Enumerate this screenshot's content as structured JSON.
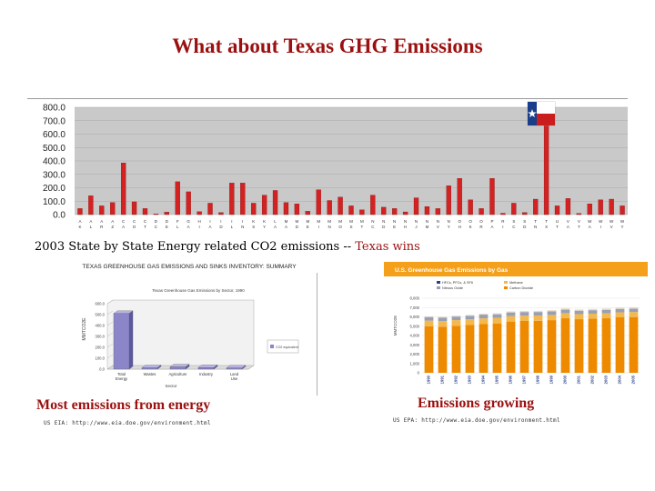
{
  "slide": {
    "title": "What about Texas GHG Emissions",
    "caption_main": "2003 State by State Energy related CO2 emissions",
    "caption_sep": " -- ",
    "caption_highlight": "Texas wins",
    "caption_left": "Most emissions from energy",
    "caption_right": "Emissions growing",
    "source_left": "US EIA: http://www.eia.doe.gov/environment.html",
    "source_right": "US EPA: http://www.eia.doe.gov/environment.html"
  },
  "colors": {
    "title": "#9b1111",
    "bar_red": "#d42121",
    "bar_orange": "#ee8a00",
    "panel_header": "#f5a01a",
    "gray_band": "#9aa0b4",
    "lavender": "#8a86c8"
  },
  "chart_data": [
    {
      "type": "bar",
      "title": "2003 State by State Energy related CO2 emissions",
      "ylim": [
        0,
        800
      ],
      "yticks": [
        "800.0",
        "700.0",
        "600.0",
        "500.0",
        "400.0",
        "300.0",
        "200.0",
        "100.0",
        "0.0"
      ],
      "categories": [
        "AK",
        "AL",
        "AR",
        "AZ",
        "CA",
        "CO",
        "CT",
        "DC",
        "DE",
        "FL",
        "GA",
        "HI",
        "IA",
        "ID",
        "IL",
        "IN",
        "KS",
        "KY",
        "LA",
        "MA",
        "MD",
        "ME",
        "MI",
        "MN",
        "MO",
        "MS",
        "MT",
        "NC",
        "ND",
        "NE",
        "NH",
        "NJ",
        "NM",
        "NV",
        "NY",
        "OH",
        "OK",
        "OR",
        "PA",
        "RI",
        "SC",
        "SD",
        "TN",
        "TX",
        "UT",
        "VA",
        "VT",
        "WA",
        "WI",
        "WV",
        "WY"
      ],
      "values": [
        45,
        140,
        65,
        90,
        385,
        95,
        45,
        5,
        18,
        245,
        170,
        22,
        85,
        15,
        235,
        235,
        85,
        145,
        180,
        90,
        80,
        25,
        185,
        105,
        130,
        65,
        35,
        145,
        55,
        45,
        20,
        125,
        60,
        45,
        215,
        270,
        110,
        45,
        270,
        10,
        85,
        15,
        115,
        670,
        65,
        120,
        8,
        80,
        110,
        115,
        65
      ],
      "highlight": "TX"
    },
    {
      "type": "bar",
      "title": "TEXAS GREENHOUSE GAS EMISSIONS AND SINKS INVENTORY: SUMMARY",
      "subtitle": "Texas Greenhouse Gas Emissions by Sector, 1990",
      "ylabel": "MMTCO2E",
      "xlabel": "Sector",
      "legend": "CO2 equivalent",
      "ylim": [
        0,
        600
      ],
      "yticks": [
        "600.0",
        "500.0",
        "400.0",
        "300.0",
        "200.0",
        "100.0",
        "0.0"
      ],
      "categories": [
        "Total Energy",
        "Wastes",
        "Agriculture",
        "Industry",
        "Land Use"
      ],
      "values": [
        510,
        12,
        20,
        14,
        10
      ]
    },
    {
      "type": "bar",
      "title": "U.S. Greenhouse Gas Emissions by Gas",
      "ylabel": "MMTCO2E",
      "ylim": [
        0,
        8000
      ],
      "yticks": [
        "8,000",
        "7,000",
        "6,000",
        "5,000",
        "4,000",
        "3,000",
        "2,000",
        "1,000",
        "0"
      ],
      "legend": [
        "HFCs, PFCs, & SF6",
        "Methane",
        "Nitrous Oxide",
        "Carbon Dioxide"
      ],
      "categories": [
        "1990",
        "1991",
        "1992",
        "1993",
        "1994",
        "1995",
        "1996",
        "1997",
        "1998",
        "1999",
        "2000",
        "2001",
        "2002",
        "2003",
        "2004",
        "2005"
      ],
      "series": [
        {
          "name": "Carbon Dioxide",
          "values": [
            5000,
            4950,
            5050,
            5150,
            5250,
            5300,
            5500,
            5560,
            5580,
            5650,
            5850,
            5750,
            5800,
            5850,
            5950,
            5980
          ]
        },
        {
          "name": "Methane",
          "values": [
            600,
            600,
            600,
            590,
            590,
            585,
            580,
            570,
            560,
            555,
            550,
            545,
            545,
            545,
            540,
            540
          ]
        },
        {
          "name": "Nitrous Oxide",
          "values": [
            380,
            380,
            385,
            380,
            400,
            395,
            395,
            390,
            385,
            380,
            375,
            370,
            370,
            365,
            370,
            370
          ]
        },
        {
          "name": "HFCs, PFCs, & SF6",
          "values": [
            90,
            90,
            95,
            100,
            105,
            110,
            115,
            120,
            125,
            130,
            140,
            130,
            135,
            140,
            145,
            150
          ]
        }
      ]
    }
  ]
}
